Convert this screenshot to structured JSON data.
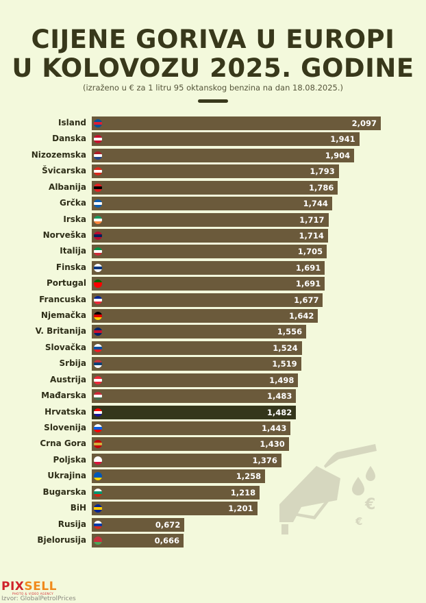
{
  "title_line1": "CIJENE GORIVA U EUROPI",
  "title_line2": "U KOLOVOZU 2025. GODINE",
  "subtitle": "(izraženo u € za 1 litru 95 oktanskog benzina na dan 18.08.2025.)",
  "logo": {
    "part1": "PIX",
    "part2": "SELL",
    "tagline": "PHOTO & VIDEO AGENCY"
  },
  "source": "Izvor: GlobalPetrolPrices",
  "colors": {
    "bar": "#6b5a3b",
    "highlight": "#34361b",
    "background": "#f3f9dc"
  },
  "chart_data": {
    "type": "bar",
    "orientation": "horizontal",
    "xlim": [
      0,
      2.1
    ],
    "unit": "€/l",
    "highlight": "Hrvatska",
    "categories": [
      "Island",
      "Danska",
      "Nizozemska",
      "Švicarska",
      "Albanija",
      "Grčka",
      "Irska",
      "Norveška",
      "Italija",
      "Finska",
      "Portugal",
      "Francuska",
      "Njemačka",
      "V. Britanija",
      "Slovačka",
      "Srbija",
      "Austrija",
      "Mađarska",
      "Hrvatska",
      "Slovenija",
      "Crna Gora",
      "Poljska",
      "Ukrajina",
      "Bugarska",
      "BiH",
      "Rusija",
      "Bjelorusija"
    ],
    "values": [
      2.097,
      1.941,
      1.904,
      1.793,
      1.786,
      1.744,
      1.717,
      1.714,
      1.705,
      1.691,
      1.691,
      1.677,
      1.642,
      1.556,
      1.524,
      1.519,
      1.498,
      1.483,
      1.482,
      1.443,
      1.43,
      1.376,
      1.258,
      1.218,
      1.201,
      0.672,
      0.666
    ],
    "labels": [
      "2,097",
      "1,941",
      "1,904",
      "1,793",
      "1,786",
      "1,744",
      "1,717",
      "1,714",
      "1,705",
      "1,691",
      "1,691",
      "1,677",
      "1,642",
      "1,556",
      "1,524",
      "1,519",
      "1,498",
      "1,483",
      "1,482",
      "1,443",
      "1,430",
      "1,376",
      "1,258",
      "1,218",
      "1,201",
      "0,672",
      "0,666"
    ],
    "flags": [
      [
        "#02529c",
        "#dc1e35",
        "#02529c"
      ],
      [
        "#c8102e",
        "#ffffff",
        "#c8102e"
      ],
      [
        "#ae1c28",
        "#ffffff",
        "#21468b"
      ],
      [
        "#da291c",
        "#ffffff",
        "#da291c"
      ],
      [
        "#e41e20",
        "#000000",
        "#e41e20"
      ],
      [
        "#0d5eaf",
        "#ffffff",
        "#0d5eaf"
      ],
      [
        "#169b62",
        "#ffffff",
        "#ff883e"
      ],
      [
        "#ba0c2f",
        "#00205b",
        "#ba0c2f"
      ],
      [
        "#009246",
        "#ffffff",
        "#ce2b37"
      ],
      [
        "#ffffff",
        "#003580",
        "#ffffff"
      ],
      [
        "#006600",
        "#ff0000",
        "#ff0000"
      ],
      [
        "#002395",
        "#ffffff",
        "#ed2939"
      ],
      [
        "#000000",
        "#dd0000",
        "#ffce00"
      ],
      [
        "#012169",
        "#c8102e",
        "#012169"
      ],
      [
        "#ffffff",
        "#0b4ea2",
        "#ee1c25"
      ],
      [
        "#c6363c",
        "#0c4076",
        "#ffffff"
      ],
      [
        "#ed2939",
        "#ffffff",
        "#ed2939"
      ],
      [
        "#ce2939",
        "#ffffff",
        "#477050"
      ],
      [
        "#ff0000",
        "#ffffff",
        "#171796"
      ],
      [
        "#ffffff",
        "#005ce5",
        "#ff0000"
      ],
      [
        "#c40308",
        "#d3ae3b",
        "#c40308"
      ],
      [
        "#ffffff",
        "#ffffff",
        "#dc143c"
      ],
      [
        "#0057b7",
        "#0057b7",
        "#ffd700"
      ],
      [
        "#ffffff",
        "#00966e",
        "#d62612"
      ],
      [
        "#002395",
        "#fecb00",
        "#002395"
      ],
      [
        "#ffffff",
        "#0039a6",
        "#d52b1e"
      ],
      [
        "#c8313e",
        "#c8313e",
        "#4aa657"
      ]
    ]
  }
}
